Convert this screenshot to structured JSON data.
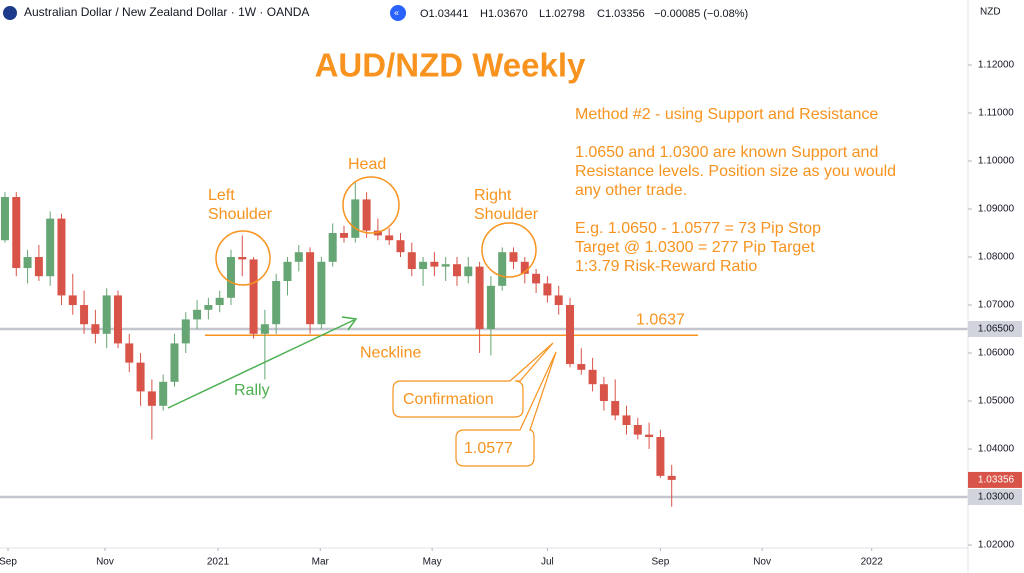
{
  "chart_data": {
    "type": "candlestick",
    "title": "AUD/NZD Weekly",
    "header": "Australian Dollar / New Zealand Dollar · 1W · OANDA",
    "header_values": [
      "O1.03441",
      "H1.03670",
      "L1.02798",
      "C1.03356",
      "−0.00085 (−0.08%)"
    ],
    "axis_unit_label": "NZD",
    "up_color": "#66a574",
    "down_color": "#d95448",
    "x": [
      0,
      1,
      2,
      3,
      4,
      5,
      6,
      7,
      8,
      9,
      10,
      11,
      12,
      13,
      14,
      15,
      16,
      17,
      18,
      19,
      20,
      21,
      22,
      23,
      24,
      25,
      26,
      27,
      28,
      29,
      30,
      31,
      32,
      33,
      34,
      35,
      36,
      37,
      38,
      39,
      40,
      41,
      42,
      43,
      44,
      45,
      46,
      47,
      48,
      49,
      50,
      51,
      52,
      53,
      54,
      55,
      56,
      57,
      58,
      59
    ],
    "open": [
      1.0835,
      1.0925,
      1.0777,
      1.08,
      1.076,
      1.088,
      1.072,
      1.07,
      1.066,
      1.064,
      1.072,
      1.062,
      1.058,
      1.052,
      1.049,
      1.054,
      1.062,
      1.067,
      1.069,
      1.07,
      1.0715,
      1.08,
      1.0795,
      1.064,
      1.066,
      1.075,
      1.079,
      1.081,
      1.066,
      1.079,
      1.085,
      1.084,
      1.092,
      1.0855,
      1.0845,
      1.0835,
      1.081,
      1.0775,
      1.079,
      1.078,
      1.0785,
      1.076,
      1.078,
      1.065,
      1.074,
      1.081,
      1.079,
      1.0765,
      1.0745,
      1.072,
      1.07,
      1.0577,
      1.0565,
      1.0535,
      1.05,
      1.047,
      1.045,
      1.043,
      1.0425,
      1.03441
    ],
    "high": [
      1.0935,
      1.0935,
      1.0815,
      1.0825,
      1.0895,
      1.089,
      1.0765,
      1.073,
      1.069,
      1.0735,
      1.073,
      1.064,
      1.06,
      1.0545,
      1.0555,
      1.064,
      1.0685,
      1.071,
      1.0715,
      1.073,
      1.0815,
      1.0845,
      1.08,
      1.069,
      1.0765,
      1.08,
      1.0825,
      1.082,
      1.08,
      1.087,
      1.0865,
      1.0955,
      1.0935,
      1.088,
      1.086,
      1.085,
      1.083,
      1.08,
      1.081,
      1.08,
      1.08,
      1.08,
      1.079,
      1.076,
      1.082,
      1.082,
      1.08,
      1.0775,
      1.076,
      1.074,
      1.0715,
      1.061,
      1.059,
      1.055,
      1.0545,
      1.049,
      1.0465,
      1.0455,
      1.044,
      1.0367
    ],
    "low": [
      1.083,
      1.076,
      1.0745,
      1.075,
      1.074,
      1.07,
      1.068,
      1.064,
      1.062,
      1.061,
      1.061,
      1.056,
      1.049,
      1.042,
      1.048,
      1.053,
      1.06,
      1.065,
      1.067,
      1.0685,
      1.07,
      1.076,
      1.063,
      1.0545,
      1.064,
      1.072,
      1.077,
      1.064,
      1.065,
      1.078,
      1.083,
      1.083,
      1.084,
      1.0835,
      1.0825,
      1.08,
      1.076,
      1.074,
      1.076,
      1.075,
      1.074,
      1.0745,
      1.06,
      1.0595,
      1.073,
      1.0775,
      1.0745,
      1.0725,
      1.0705,
      1.068,
      1.057,
      1.0555,
      1.052,
      1.048,
      1.046,
      1.043,
      1.042,
      1.04,
      1.034,
      1.02798
    ],
    "close": [
      1.0925,
      1.0777,
      1.08,
      1.076,
      1.088,
      1.072,
      1.07,
      1.066,
      1.064,
      1.072,
      1.062,
      1.058,
      1.052,
      1.049,
      1.054,
      1.062,
      1.067,
      1.069,
      1.07,
      1.0715,
      1.08,
      1.0795,
      1.064,
      1.066,
      1.075,
      1.079,
      1.081,
      1.066,
      1.079,
      1.085,
      1.084,
      1.092,
      1.0855,
      1.0845,
      1.0835,
      1.081,
      1.0775,
      1.079,
      1.078,
      1.0785,
      1.076,
      1.078,
      1.065,
      1.074,
      1.081,
      1.079,
      1.0765,
      1.0745,
      1.072,
      1.07,
      1.0577,
      1.0565,
      1.0535,
      1.05,
      1.047,
      1.045,
      1.043,
      1.0425,
      1.03441,
      1.03356
    ],
    "last_price_label": "1.03356",
    "xlim": [
      -0.44,
      85.22
    ],
    "xticks": [
      {
        "value": 0.27,
        "label": "Sep"
      },
      {
        "value": 8.85,
        "label": "Nov"
      },
      {
        "value": 18.85,
        "label": "2021"
      },
      {
        "value": 27.9,
        "label": "Mar"
      },
      {
        "value": 37.8,
        "label": "May"
      },
      {
        "value": 48,
        "label": "Jul"
      },
      {
        "value": 58,
        "label": "Sep"
      },
      {
        "value": 67,
        "label": "Nov"
      },
      {
        "value": 76.7,
        "label": "2022"
      }
    ],
    "ylim": [
      1.01938,
      1.13354
    ],
    "yticks": [
      {
        "value": 1.02,
        "label": "1.02000"
      },
      {
        "value": 1.03,
        "label": "1.03000"
      },
      {
        "value": 1.04,
        "label": "1.04000"
      },
      {
        "value": 1.05,
        "label": "1.05000"
      },
      {
        "value": 1.06,
        "label": "1.06000"
      },
      {
        "value": 1.07,
        "label": "1.07000"
      },
      {
        "value": 1.08,
        "label": "1.08000"
      },
      {
        "value": 1.09,
        "label": "1.09000"
      },
      {
        "value": 1.1,
        "label": "1.10000"
      },
      {
        "value": 1.11,
        "label": "1.11000"
      },
      {
        "value": 1.12,
        "label": "1.12000"
      }
    ],
    "hlines": [
      {
        "value": 1.065,
        "label": "1.06500"
      },
      {
        "value": 1.03,
        "label": "1.03000"
      }
    ],
    "neckline": {
      "value": 1.0637,
      "label": "1.0637",
      "name": "Neckline"
    },
    "annotations": {
      "left_shoulder": [
        "Left",
        "Shoulder"
      ],
      "head": "Head",
      "right_shoulder": [
        "Right",
        "Shoulder"
      ],
      "rally": "Rally",
      "confirmation": "Confirmation",
      "entry": "1.0577"
    },
    "notes": [
      "Method #2 - using Support and Resistance",
      "1.0650 and 1.0300 are known Support and",
      "Resistance levels.  Position size as you would",
      "any other trade.",
      "E.g. 1.0650 - 1.0577 = 73 Pip Stop",
      "Target @ 1.0300  = 277 Pip Target",
      "1:3.79 Risk-Reward Ratio"
    ]
  }
}
